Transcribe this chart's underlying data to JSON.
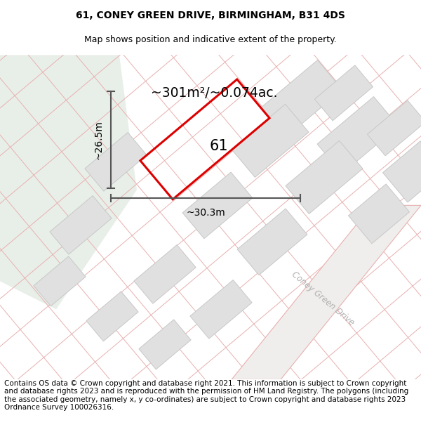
{
  "title_line1": "61, CONEY GREEN DRIVE, BIRMINGHAM, B31 4DS",
  "title_line2": "Map shows position and indicative extent of the property.",
  "area_label": "~301m²/~0.074ac.",
  "house_number": "61",
  "dim_width": "~30.3m",
  "dim_height": "~26.5m",
  "road_label": "Coney Green Drive",
  "footer_text": "Contains OS data © Crown copyright and database right 2021. This information is subject to Crown copyright and database rights 2023 and is reproduced with the permission of HM Land Registry. The polygons (including the associated geometry, namely x, y co-ordinates) are subject to Crown copyright and database rights 2023 Ordnance Survey 100026316.",
  "map_bg": "#f7f7f7",
  "green_area_color": "#e8efe8",
  "plot_outline_color": "#dd0000",
  "road_line_color": "#e8b0b0",
  "building_fill": "#e0e0e0",
  "building_edge": "#c8c8c8",
  "title_fontsize": 10,
  "subtitle_fontsize": 9,
  "footer_fontsize": 7.5,
  "dim_line_color": "#555555",
  "road_text_color": "#b0b0b0"
}
